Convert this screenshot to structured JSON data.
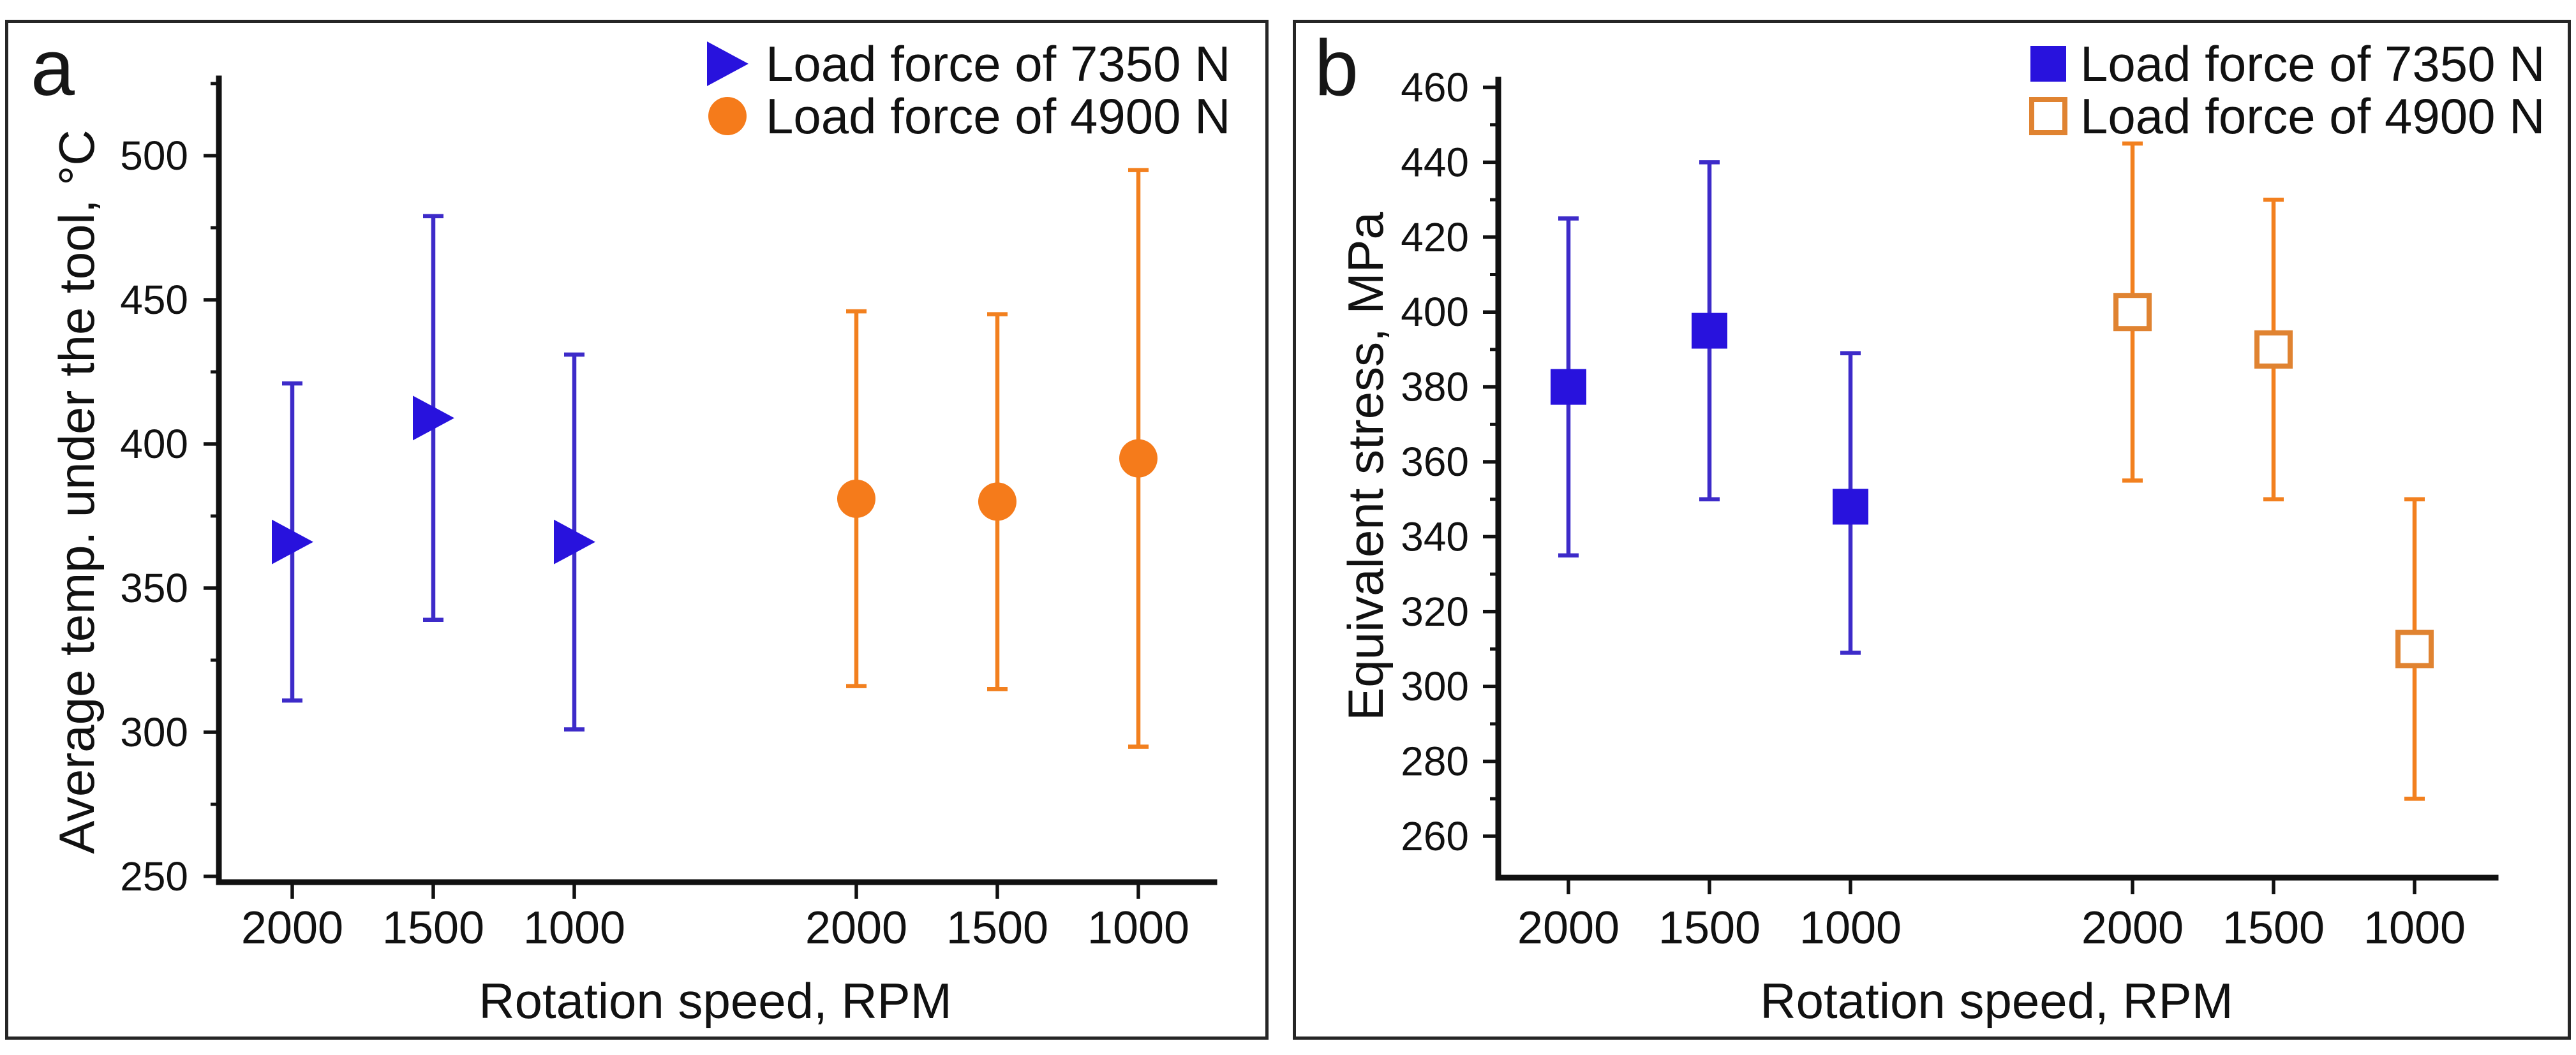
{
  "figure": {
    "background": "#ffffff",
    "panel_border_color": "#262626"
  },
  "chart_data": [
    {
      "type": "scatter",
      "panel_letter": "a",
      "xlabel": "Rotation speed, RPM",
      "ylabel": "Average temp. under the tool, °C",
      "x_tick_labels": [
        "2000",
        "1500",
        "1000",
        "2000",
        "1500",
        "1000"
      ],
      "y_major_ticks": [
        250,
        300,
        350,
        400,
        450,
        500
      ],
      "y_minor_ticks": [
        275,
        325,
        375,
        425,
        475,
        525
      ],
      "ylim": [
        246,
        527
      ],
      "grid": false,
      "legend_position": "top-right",
      "series": [
        {
          "name": "Load force of 7350 N",
          "marker": "triangle-right",
          "marker_color": "#2812DD",
          "error_color": "#3D2BC9",
          "x_slots": [
            0,
            1,
            2
          ],
          "values": [
            366,
            409,
            366
          ],
          "upper": [
            421,
            479,
            431
          ],
          "lower": [
            311,
            339,
            301
          ]
        },
        {
          "name": "Load force of 4900 N",
          "marker": "circle",
          "marker_color": "#F57B1B",
          "error_color": "#F2801F",
          "x_slots": [
            3,
            4,
            5
          ],
          "values": [
            381,
            380,
            395
          ],
          "upper": [
            446,
            445,
            495
          ],
          "lower": [
            316,
            315,
            295
          ]
        }
      ]
    },
    {
      "type": "scatter",
      "panel_letter": "b",
      "xlabel": "Rotation speed, RPM",
      "ylabel": "Equivalent stress, MPa",
      "x_tick_labels": [
        "2000",
        "1500",
        "1000",
        "2000",
        "1500",
        "1000"
      ],
      "y_major_ticks": [
        260,
        280,
        300,
        320,
        340,
        360,
        380,
        400,
        420,
        440,
        460
      ],
      "y_minor_ticks": [
        270,
        290,
        310,
        330,
        350,
        370,
        390,
        410,
        430,
        450
      ],
      "ylim": [
        248,
        465
      ],
      "grid": false,
      "legend_position": "top-right",
      "series": [
        {
          "name": "Load force of 7350 N",
          "marker": "square",
          "marker_color": "#2812DD",
          "error_color": "#3D2BC9",
          "x_slots": [
            0,
            1,
            2
          ],
          "values": [
            380,
            395,
            348
          ],
          "upper": [
            425,
            440,
            389
          ],
          "lower": [
            335,
            350,
            309
          ]
        },
        {
          "name": "Load force of 4900 N",
          "marker": "square-open",
          "marker_color": "#E08331",
          "error_color": "#F2801F",
          "x_slots": [
            3,
            4,
            5
          ],
          "values": [
            400,
            390,
            310
          ],
          "upper": [
            445,
            430,
            350
          ],
          "lower": [
            355,
            350,
            270
          ]
        }
      ]
    }
  ]
}
